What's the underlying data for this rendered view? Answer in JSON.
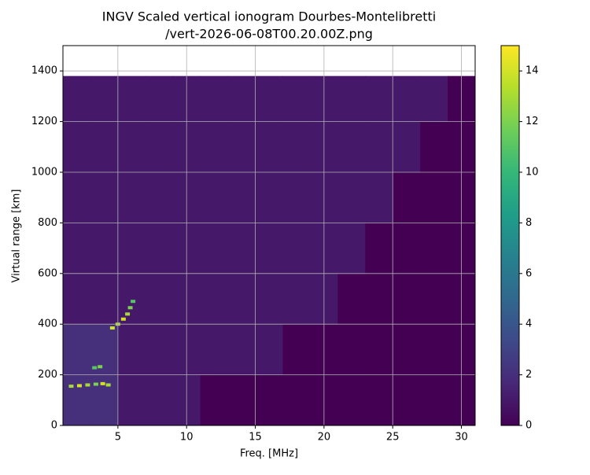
{
  "chart_data": {
    "type": "heatmap",
    "title": "INGV Scaled vertical ionogram Dourbes-Montelibretti",
    "subtitle": "/vert-2026-06-08T00.20.00Z.png",
    "x_label": "Freq. [MHz]",
    "y_label": "Virtual range [km]",
    "xlim": [
      1,
      31
    ],
    "ylim": [
      0,
      1500
    ],
    "xticks": [
      5,
      10,
      15,
      20,
      25,
      30
    ],
    "yticks": [
      0,
      200,
      400,
      600,
      800,
      1000,
      1200,
      1400
    ],
    "grid": true,
    "x_edges": [
      1,
      3,
      5,
      7,
      9,
      11,
      13,
      15,
      17,
      19,
      21,
      23,
      25,
      27,
      29,
      31
    ],
    "y_edges": [
      0,
      200,
      400,
      600,
      800,
      1000,
      1200,
      1380
    ],
    "z": [
      [
        2,
        2,
        1,
        1,
        1,
        0,
        0,
        0,
        0,
        0,
        0,
        0,
        0,
        0,
        0
      ],
      [
        2,
        2,
        1,
        1,
        1,
        1,
        1,
        1,
        0,
        0,
        0,
        0,
        0,
        0,
        0
      ],
      [
        1,
        1,
        1,
        1,
        1,
        1,
        1,
        1,
        1,
        1,
        0,
        0,
        0,
        0,
        0
      ],
      [
        1,
        1,
        1,
        1,
        1,
        1,
        1,
        1,
        1,
        1,
        1,
        0,
        0,
        0,
        0
      ],
      [
        1,
        1,
        1,
        1,
        1,
        1,
        1,
        1,
        1,
        1,
        1,
        1,
        0,
        0,
        0
      ],
      [
        1,
        1,
        1,
        1,
        1,
        1,
        1,
        1,
        1,
        1,
        1,
        1,
        1,
        0,
        0
      ],
      [
        1,
        1,
        1,
        1,
        1,
        1,
        1,
        1,
        1,
        1,
        1,
        1,
        1,
        1,
        0
      ]
    ],
    "points": {
      "x": [
        1.6,
        2.2,
        2.8,
        3.4,
        3.9,
        4.3,
        3.3,
        3.7,
        4.6,
        5.0,
        5.4,
        5.7,
        5.9,
        6.1
      ],
      "y": [
        155,
        157,
        160,
        163,
        165,
        160,
        228,
        232,
        385,
        400,
        420,
        440,
        465,
        490
      ],
      "values": [
        13,
        14,
        13,
        12,
        14,
        13,
        11,
        12,
        14,
        13,
        14,
        13,
        12,
        11
      ]
    },
    "clim": [
      0,
      15
    ],
    "cticks": [
      0,
      2,
      4,
      6,
      8,
      10,
      12,
      14
    ],
    "colormap": [
      "#440154",
      "#482878",
      "#3e4989",
      "#31688e",
      "#26828e",
      "#1f9e89",
      "#35b779",
      "#6ece58",
      "#b5de2b",
      "#fde725"
    ]
  }
}
